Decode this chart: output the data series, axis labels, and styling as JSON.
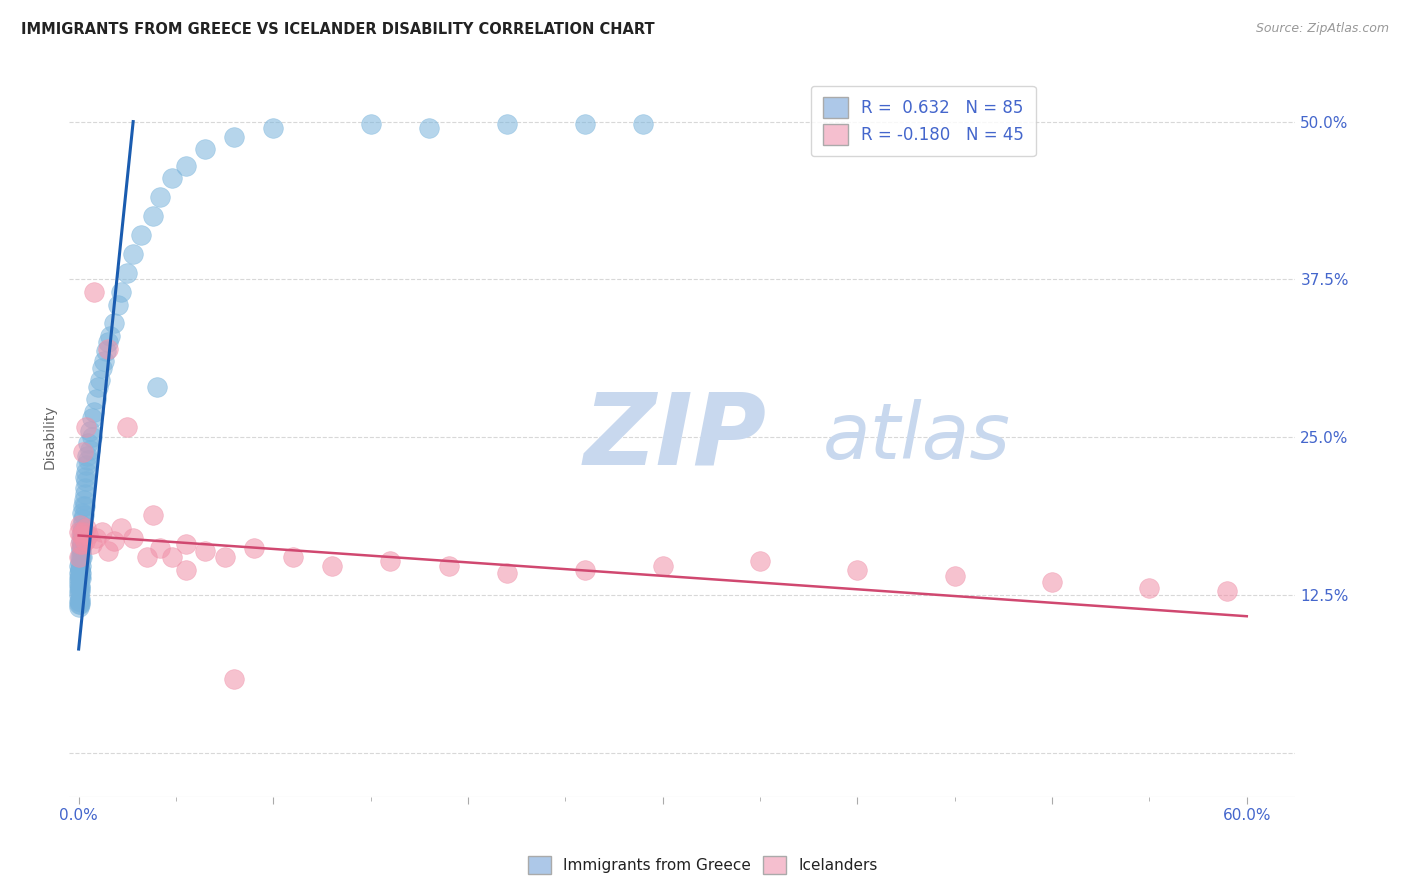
{
  "title": "IMMIGRANTS FROM GREECE VS ICELANDER DISABILITY CORRELATION CHART",
  "source": "Source: ZipAtlas.com",
  "ylabel": "Disability",
  "ytick_values": [
    0.0,
    0.125,
    0.25,
    0.375,
    0.5
  ],
  "xtick_major": [
    0.0,
    0.1,
    0.2,
    0.3,
    0.4,
    0.5,
    0.6
  ],
  "xtick_minor": [
    0.05,
    0.15,
    0.25,
    0.35,
    0.45,
    0.55
  ],
  "xlim": [
    -0.005,
    0.625
  ],
  "ylim": [
    -0.035,
    0.535
  ],
  "legend_label1": "R =  0.632   N = 85",
  "legend_label2": "R = -0.180   N = 45",
  "legend_color1": "#adc8e8",
  "legend_color2": "#f5bfcf",
  "scatter_color1": "#7ab4dc",
  "scatter_color2": "#f090a8",
  "trendline_color1": "#1a5cb0",
  "trendline_color2": "#d04870",
  "watermark_zip": "ZIP",
  "watermark_atlas": "atlas",
  "watermark_color_zip": "#c8d8ee",
  "watermark_color_atlas": "#c8d8ee",
  "background_color": "#ffffff",
  "grid_color": "#d8d8d8",
  "legend_text_color": "#4466cc",
  "axis_label_color": "#4466cc",
  "trendline1_x0": 0.0,
  "trendline1_y0": 0.082,
  "trendline1_x1": 0.028,
  "trendline1_y1": 0.5,
  "trendline2_x0": 0.0,
  "trendline2_y0": 0.172,
  "trendline2_x1": 0.6,
  "trendline2_y1": 0.108,
  "blue_x": [
    0.00015,
    0.00018,
    0.0002,
    0.00022,
    0.00025,
    0.0003,
    0.0003,
    0.00035,
    0.0004,
    0.0004,
    0.00045,
    0.0005,
    0.0005,
    0.00055,
    0.0006,
    0.0006,
    0.00065,
    0.0007,
    0.0007,
    0.00075,
    0.0008,
    0.0008,
    0.0009,
    0.0009,
    0.001,
    0.001,
    0.001,
    0.0012,
    0.0012,
    0.0013,
    0.0014,
    0.0015,
    0.0015,
    0.0016,
    0.0017,
    0.0018,
    0.0019,
    0.002,
    0.002,
    0.0022,
    0.0022,
    0.0025,
    0.0025,
    0.003,
    0.003,
    0.0032,
    0.0035,
    0.0038,
    0.004,
    0.004,
    0.0045,
    0.005,
    0.005,
    0.006,
    0.006,
    0.007,
    0.007,
    0.008,
    0.009,
    0.01,
    0.011,
    0.012,
    0.013,
    0.014,
    0.015,
    0.016,
    0.018,
    0.02,
    0.022,
    0.025,
    0.028,
    0.032,
    0.038,
    0.042,
    0.048,
    0.055,
    0.065,
    0.08,
    0.1,
    0.15,
    0.18,
    0.22,
    0.26,
    0.29,
    0.04
  ],
  "blue_y": [
    0.135,
    0.128,
    0.142,
    0.12,
    0.148,
    0.118,
    0.138,
    0.125,
    0.115,
    0.132,
    0.145,
    0.122,
    0.14,
    0.132,
    0.119,
    0.145,
    0.138,
    0.128,
    0.15,
    0.118,
    0.14,
    0.155,
    0.13,
    0.145,
    0.162,
    0.148,
    0.138,
    0.16,
    0.142,
    0.155,
    0.168,
    0.172,
    0.155,
    0.18,
    0.165,
    0.19,
    0.175,
    0.185,
    0.17,
    0.195,
    0.178,
    0.2,
    0.188,
    0.21,
    0.195,
    0.205,
    0.218,
    0.222,
    0.228,
    0.215,
    0.235,
    0.245,
    0.232,
    0.255,
    0.24,
    0.265,
    0.25,
    0.27,
    0.28,
    0.29,
    0.295,
    0.305,
    0.31,
    0.318,
    0.325,
    0.33,
    0.34,
    0.355,
    0.365,
    0.38,
    0.395,
    0.41,
    0.425,
    0.44,
    0.455,
    0.465,
    0.478,
    0.488,
    0.495,
    0.498,
    0.495,
    0.498,
    0.498,
    0.498,
    0.29
  ],
  "pink_x": [
    0.00015,
    0.0003,
    0.0005,
    0.0007,
    0.001,
    0.0015,
    0.002,
    0.003,
    0.004,
    0.005,
    0.007,
    0.009,
    0.012,
    0.015,
    0.018,
    0.022,
    0.028,
    0.035,
    0.042,
    0.048,
    0.055,
    0.065,
    0.075,
    0.09,
    0.11,
    0.13,
    0.16,
    0.19,
    0.22,
    0.26,
    0.3,
    0.35,
    0.4,
    0.45,
    0.5,
    0.55,
    0.59,
    0.002,
    0.004,
    0.008,
    0.015,
    0.025,
    0.038,
    0.055,
    0.08
  ],
  "pink_y": [
    0.155,
    0.175,
    0.165,
    0.18,
    0.172,
    0.165,
    0.175,
    0.168,
    0.178,
    0.172,
    0.165,
    0.17,
    0.175,
    0.16,
    0.168,
    0.178,
    0.17,
    0.155,
    0.162,
    0.155,
    0.165,
    0.16,
    0.155,
    0.162,
    0.155,
    0.148,
    0.152,
    0.148,
    0.142,
    0.145,
    0.148,
    0.152,
    0.145,
    0.14,
    0.135,
    0.13,
    0.128,
    0.238,
    0.258,
    0.365,
    0.32,
    0.258,
    0.188,
    0.145,
    0.058
  ],
  "bottom_legend": [
    {
      "label": "Immigrants from Greece",
      "color": "#adc8e8"
    },
    {
      "label": "Icelanders",
      "color": "#f5bfcf"
    }
  ]
}
